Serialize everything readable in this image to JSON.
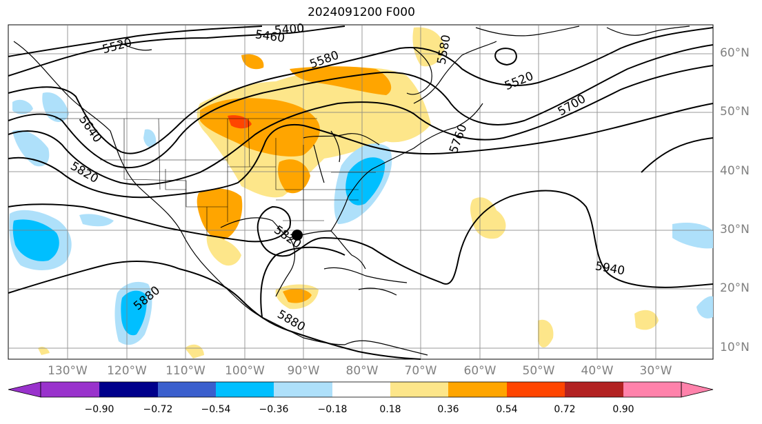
{
  "title": "2024091200 F000",
  "map": {
    "lon_labels": [
      "130°W",
      "120°W",
      "110°W",
      "100°W",
      "90°W",
      "80°W",
      "70°W",
      "60°W",
      "50°W",
      "40°W",
      "30°W"
    ],
    "lat_labels": [
      "60°N",
      "50°N",
      "40°N",
      "30°N",
      "20°N",
      "10°N"
    ],
    "contour_labels": [
      "5520",
      "5460",
      "5400",
      "5580",
      "5580",
      "5520",
      "5700",
      "5640",
      "5820",
      "5880",
      "5820",
      "5940",
      "5880",
      "5760"
    ],
    "marker": "storm-center-marker"
  },
  "colorbar": {
    "ticks": [
      "−0.90",
      "−0.72",
      "−0.54",
      "−0.36",
      "−0.18",
      "0.18",
      "0.36",
      "0.54",
      "0.72",
      "0.90"
    ],
    "colors": [
      "#9932cc",
      "#00008b",
      "#3a5fcd",
      "#00bfff",
      "#aee0fa",
      "#ffffff",
      "#fde68a",
      "#ffa500",
      "#ff4500",
      "#b22222",
      "#ff82ab"
    ]
  }
}
